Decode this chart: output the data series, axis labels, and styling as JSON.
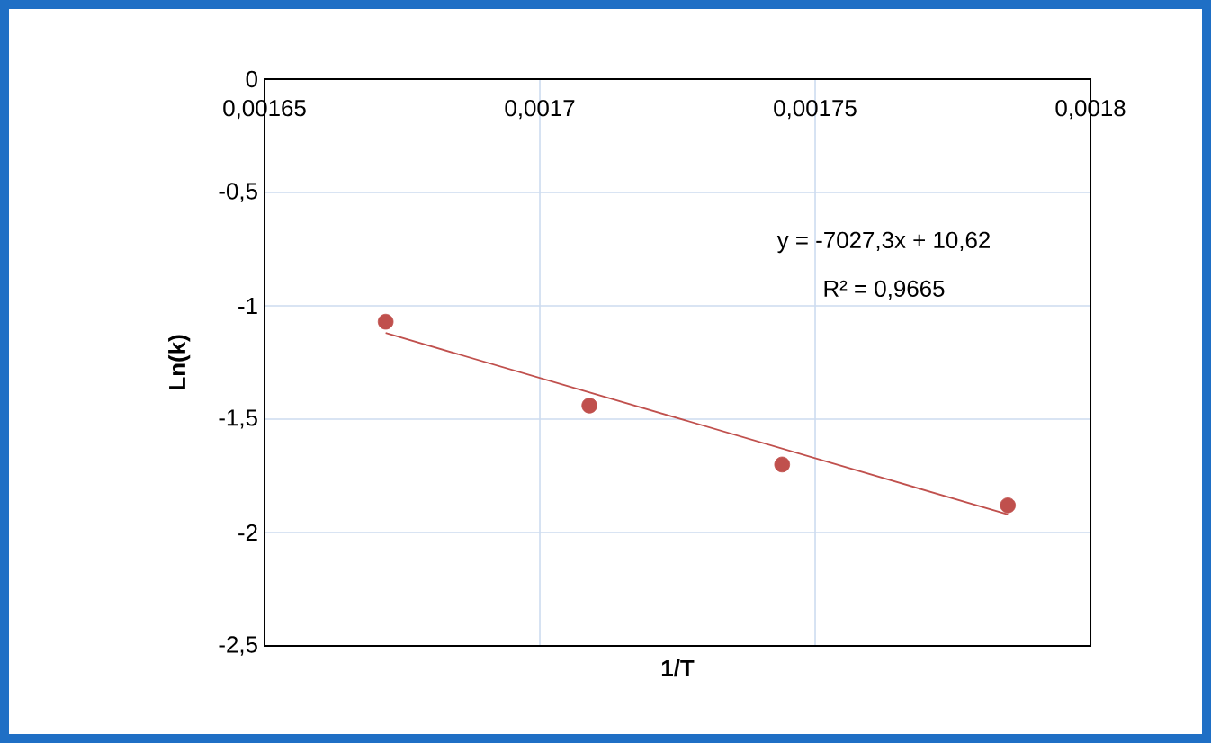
{
  "chart_data": {
    "type": "scatter",
    "xlabel": "1/T",
    "ylabel": "Ln(k)",
    "xlim": [
      0.00165,
      0.0018
    ],
    "ylim": [
      -2.5,
      0
    ],
    "xticks": [
      {
        "value": 0.00165,
        "label": "0,00165"
      },
      {
        "value": 0.0017,
        "label": "0,0017"
      },
      {
        "value": 0.00175,
        "label": "0,00175"
      },
      {
        "value": 0.0018,
        "label": "0,0018"
      }
    ],
    "yticks": [
      {
        "value": 0,
        "label": "0"
      },
      {
        "value": -0.5,
        "label": "-0,5"
      },
      {
        "value": -1,
        "label": "-1"
      },
      {
        "value": -1.5,
        "label": "-1,5"
      },
      {
        "value": -2,
        "label": "-2"
      },
      {
        "value": -2.5,
        "label": "-2,5"
      }
    ],
    "grid": true,
    "marker": "circle",
    "series": [
      {
        "color": "#c0504d",
        "x": [
          0.001672,
          0.001709,
          0.001744,
          0.001785
        ],
        "values": [
          -1.07,
          -1.44,
          -1.7,
          -1.88
        ]
      },
      {
        "type": "line",
        "marker": "none",
        "color": "#c0504d",
        "x": [
          0.001672,
          0.001785
        ],
        "values": [
          -1.12,
          -1.92
        ]
      }
    ],
    "annotations": [
      "y = -7027,3x + 10,62",
      "R² = 0,9665"
    ]
  }
}
